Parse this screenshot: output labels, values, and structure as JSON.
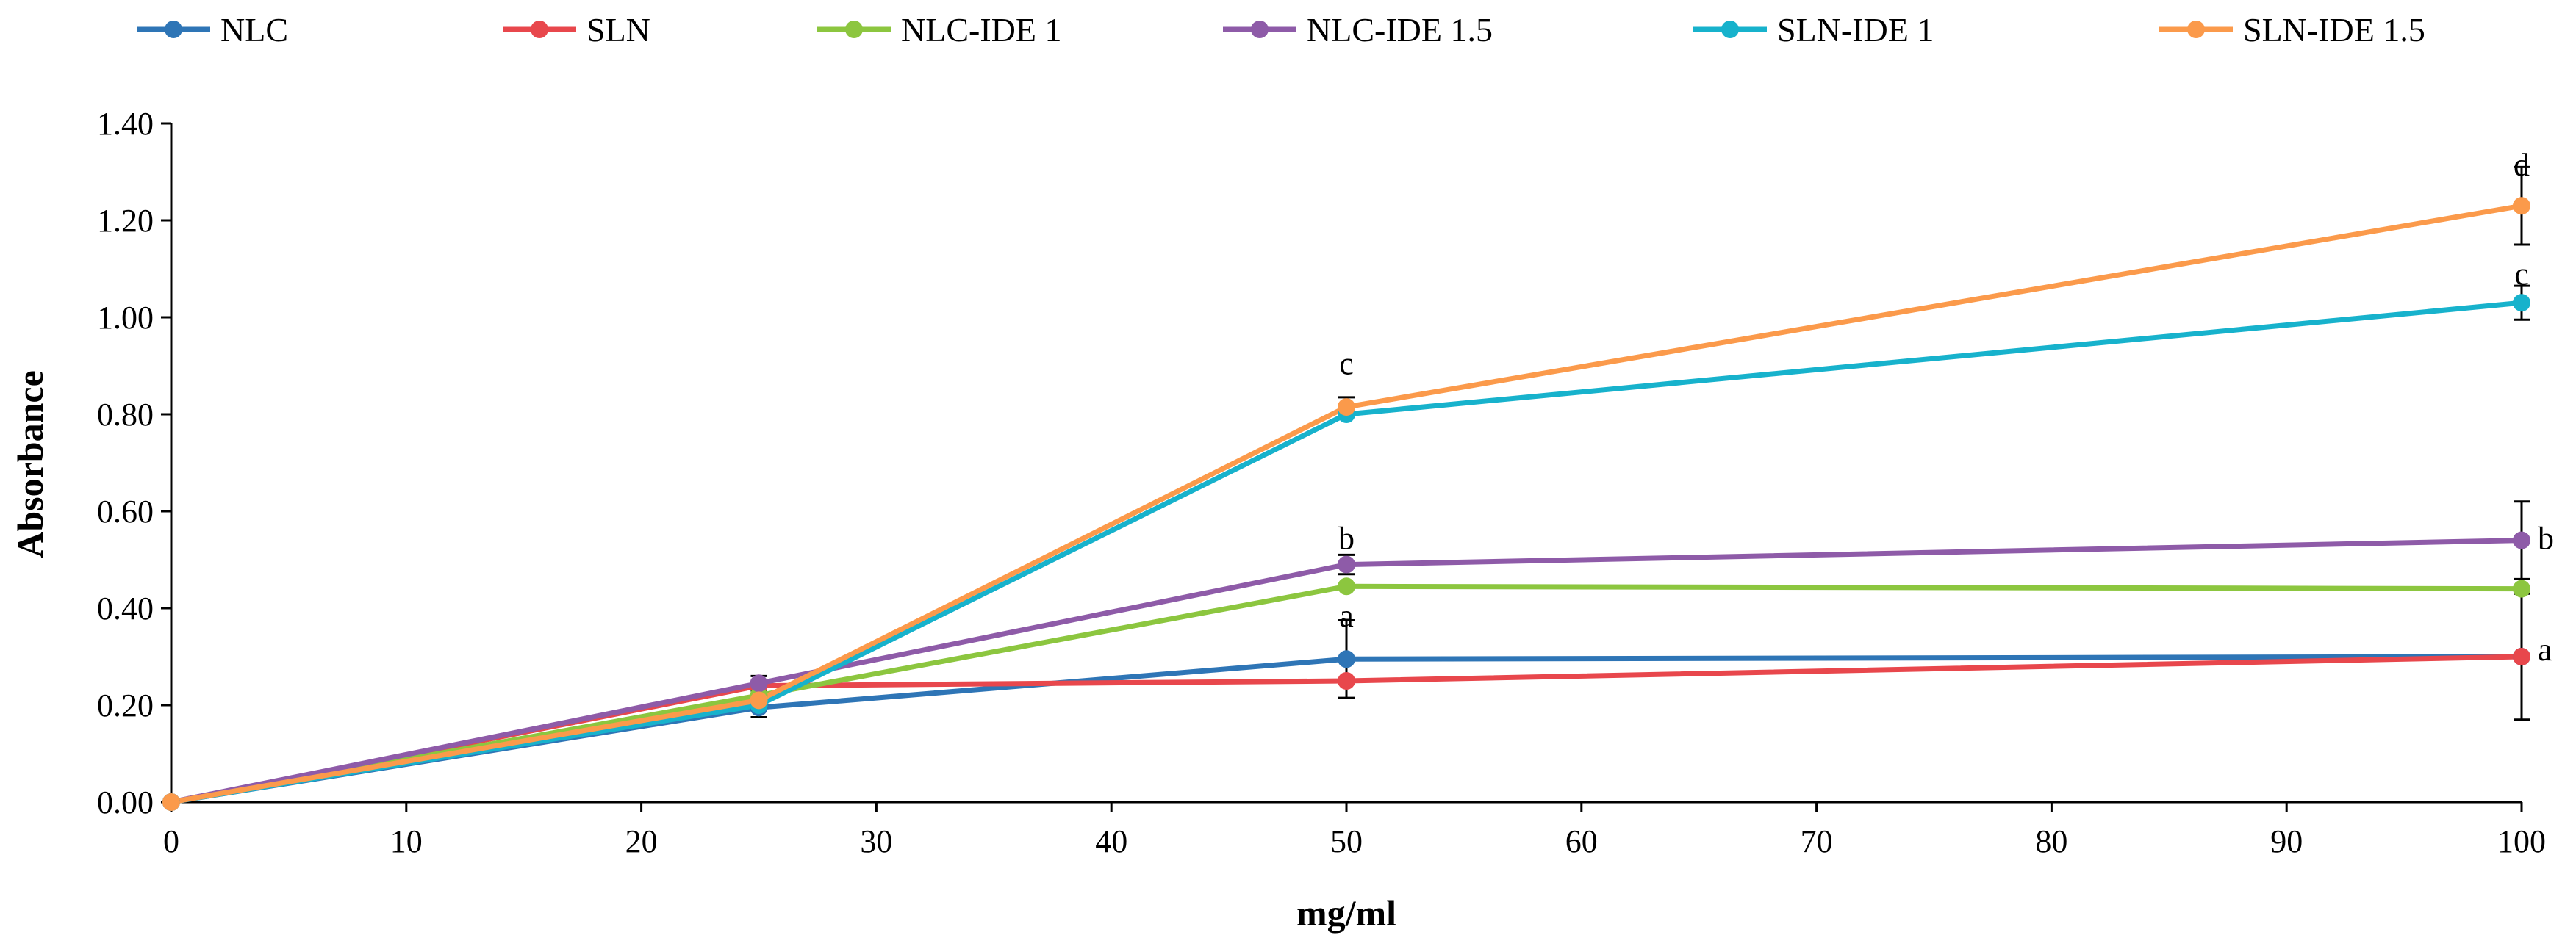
{
  "chart_data": {
    "type": "line",
    "title": "",
    "xlabel": "mg/ml",
    "ylabel": "Absorbance",
    "xlim": [
      0,
      100
    ],
    "ylim": [
      0,
      1.4
    ],
    "x_ticks": [
      0,
      10,
      20,
      30,
      40,
      50,
      60,
      70,
      80,
      90,
      100
    ],
    "x_tick_labels": [
      "0",
      "10",
      "20",
      "30",
      "40",
      "50",
      "60",
      "70",
      "80",
      "90",
      "100"
    ],
    "y_ticks": [
      0,
      0.2,
      0.4,
      0.6,
      0.8,
      1.0,
      1.2,
      1.4
    ],
    "y_tick_labels": [
      "0.00",
      "0.20",
      "0.40",
      "0.60",
      "0.80",
      "1.00",
      "1.20",
      "1.40"
    ],
    "grid": false,
    "legend_position": "top",
    "series": [
      {
        "name": "NLC",
        "color": "#2E75B6",
        "x": [
          0,
          25,
          50,
          100
        ],
        "values": [
          0,
          0.195,
          0.295,
          0.3
        ],
        "errors": [
          0,
          0.02,
          0.08,
          0.0
        ]
      },
      {
        "name": "SLN",
        "color": "#E8474C",
        "x": [
          0,
          25,
          50,
          100
        ],
        "values": [
          0,
          0.24,
          0.25,
          0.3
        ],
        "errors": [
          0,
          0.0,
          0.0,
          0.13
        ]
      },
      {
        "name": "NLC-IDE 1",
        "color": "#8CC63F",
        "x": [
          0,
          25,
          50,
          100
        ],
        "values": [
          0,
          0.22,
          0.445,
          0.44
        ],
        "errors": [
          0,
          0.0,
          0.0,
          0.0
        ]
      },
      {
        "name": "NLC-IDE 1.5",
        "color": "#8E5BA8",
        "x": [
          0,
          25,
          50,
          100
        ],
        "values": [
          0,
          0.245,
          0.49,
          0.54
        ],
        "errors": [
          0,
          0.015,
          0.02,
          0.08
        ]
      },
      {
        "name": "SLN-IDE 1",
        "color": "#17B2CC",
        "x": [
          0,
          25,
          50,
          100
        ],
        "values": [
          0,
          0.2,
          0.8,
          1.03
        ],
        "errors": [
          0,
          0.0,
          0.0,
          0.035
        ]
      },
      {
        "name": "SLN-IDE 1.5",
        "color": "#FB9A4B",
        "x": [
          0,
          25,
          50,
          100
        ],
        "values": [
          0,
          0.21,
          0.815,
          1.23
        ],
        "errors": [
          0,
          0.0,
          0.02,
          0.08
        ]
      }
    ],
    "annotations": [
      {
        "text": "c",
        "x": 50,
        "y": 0.905,
        "align": "center"
      },
      {
        "text": "b",
        "x": 50,
        "y": 0.545,
        "align": "center"
      },
      {
        "text": "a",
        "x": 50,
        "y": 0.385,
        "align": "center"
      },
      {
        "text": "d",
        "x": 100,
        "y": 1.315,
        "align": "center"
      },
      {
        "text": "c",
        "x": 100,
        "y": 1.09,
        "align": "center"
      },
      {
        "text": "b",
        "x": 100,
        "y": 0.545,
        "align": "right"
      },
      {
        "text": "a",
        "x": 100,
        "y": 0.315,
        "align": "right"
      }
    ]
  }
}
